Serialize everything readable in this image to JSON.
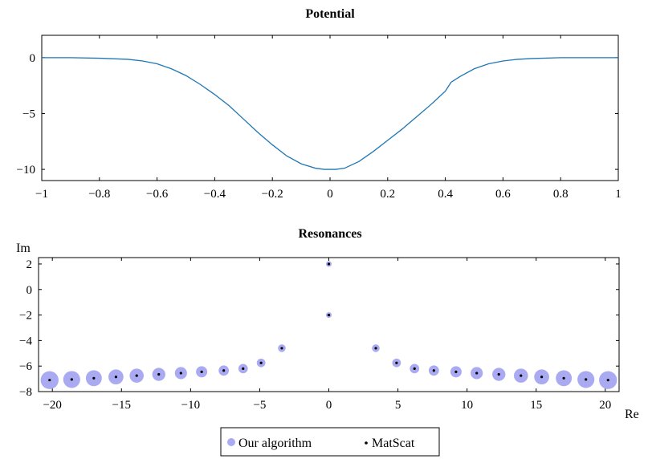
{
  "chart_data": [
    {
      "type": "line",
      "title": "Potential",
      "xlabel": "",
      "ylabel": "",
      "xlim": [
        -1,
        1
      ],
      "ylim": [
        -11,
        2
      ],
      "grid": false,
      "line_color": "#1f77b4",
      "xticks": [
        -1,
        -0.8,
        -0.6,
        -0.4,
        -0.2,
        0,
        0.2,
        0.4,
        0.6,
        0.8,
        1
      ],
      "xtick_labels": [
        "−1",
        "−0.8",
        "−0.6",
        "−0.4",
        "−0.2",
        "0",
        "0.2",
        "0.4",
        "0.6",
        "0.8",
        "1"
      ],
      "yticks": [
        0,
        -5,
        -10
      ],
      "ytick_labels": [
        "0",
        "−5",
        "−10"
      ],
      "series": [
        {
          "x": [
            -1,
            -0.9,
            -0.8,
            -0.7,
            -0.65,
            -0.6,
            -0.55,
            -0.5,
            -0.45,
            -0.4,
            -0.35,
            -0.3,
            -0.25,
            -0.2,
            -0.15,
            -0.1,
            -0.05,
            -0.02,
            0,
            0.02,
            0.05,
            0.1,
            0.15,
            0.2,
            0.25,
            0.3,
            0.35,
            0.4,
            0.42,
            0.45,
            0.5,
            0.55,
            0.6,
            0.65,
            0.7,
            0.8,
            0.9,
            1
          ],
          "y": [
            0,
            0,
            -0.05,
            -0.15,
            -0.3,
            -0.55,
            -1.0,
            -1.6,
            -2.4,
            -3.3,
            -4.3,
            -5.5,
            -6.7,
            -7.8,
            -8.8,
            -9.5,
            -9.9,
            -10.0,
            -10.0,
            -10.0,
            -9.9,
            -9.3,
            -8.4,
            -7.4,
            -6.4,
            -5.3,
            -4.2,
            -3.0,
            -2.2,
            -1.7,
            -1.0,
            -0.55,
            -0.3,
            -0.15,
            -0.08,
            0,
            0,
            0
          ]
        }
      ]
    },
    {
      "type": "scatter",
      "title": "Resonances",
      "xlabel": "Re",
      "ylabel": "Im",
      "xlim": [
        -21,
        21
      ],
      "ylim": [
        -8,
        2.5
      ],
      "grid": false,
      "xticks": [
        -20,
        -15,
        -10,
        -5,
        0,
        5,
        10,
        15,
        20
      ],
      "xtick_labels": [
        "−20",
        "−15",
        "−10",
        "−5",
        "0",
        "5",
        "10",
        "15",
        "20"
      ],
      "yticks": [
        2,
        0,
        -2,
        -4,
        -6,
        -8
      ],
      "ytick_labels": [
        "2",
        "0",
        "−2",
        "−4",
        "−6",
        "−8"
      ],
      "legend_position": "bottom-center",
      "series": [
        {
          "name": "Our algorithm",
          "color": "#aaaaf2",
          "x": [
            -20.2,
            -18.6,
            -17.0,
            -15.4,
            -13.9,
            -12.3,
            -10.7,
            -9.2,
            -7.6,
            -6.2,
            -4.9,
            -3.4,
            0,
            0,
            3.4,
            4.9,
            6.2,
            7.6,
            9.2,
            10.7,
            12.3,
            13.9,
            15.4,
            17.0,
            18.6,
            20.2
          ],
          "y": [
            -7.1,
            -7.05,
            -6.95,
            -6.85,
            -6.75,
            -6.65,
            -6.55,
            -6.45,
            -6.35,
            -6.2,
            -5.75,
            -4.6,
            2.0,
            -2.0,
            -4.6,
            -5.75,
            -6.2,
            -6.35,
            -6.45,
            -6.55,
            -6.65,
            -6.75,
            -6.85,
            -6.95,
            -7.05,
            -7.1
          ]
        },
        {
          "name": "MatScat",
          "color": "#000000",
          "x": [
            -20.2,
            -18.6,
            -17.0,
            -15.4,
            -13.9,
            -12.3,
            -10.7,
            -9.2,
            -7.6,
            -6.2,
            -4.9,
            -3.4,
            0,
            0,
            3.4,
            4.9,
            6.2,
            7.6,
            9.2,
            10.7,
            12.3,
            13.9,
            15.4,
            17.0,
            18.6,
            20.2
          ],
          "y": [
            -7.1,
            -7.05,
            -6.95,
            -6.85,
            -6.75,
            -6.65,
            -6.55,
            -6.45,
            -6.35,
            -6.2,
            -5.75,
            -4.6,
            2.0,
            -2.0,
            -4.6,
            -5.75,
            -6.2,
            -6.35,
            -6.45,
            -6.55,
            -6.65,
            -6.75,
            -6.85,
            -6.95,
            -7.05,
            -7.1
          ]
        }
      ]
    }
  ]
}
